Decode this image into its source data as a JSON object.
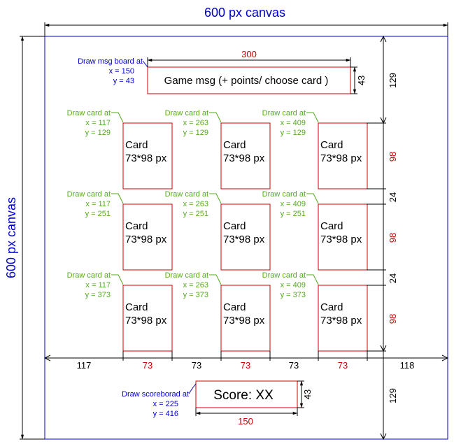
{
  "title_top": "600 px canvas",
  "title_left": "600 px canvas",
  "colors": {
    "canvas": "#0000cc",
    "box": "#cc0000",
    "card_callout": "#55aa22",
    "msg_callout": "#0000cc",
    "dimension": "#000000",
    "dimension_highlight": "#cc0000"
  },
  "msg_board": {
    "label": "Game msg (+ points/ choose card )",
    "width_label": "300",
    "height_label": "43",
    "callout": [
      "Draw msg board at",
      "x = 150",
      "y = 43"
    ]
  },
  "cards": {
    "label_line1": "Card",
    "label_line2": "73*98 px",
    "callout_title": "Draw card at",
    "positions": [
      {
        "x": "x = 117",
        "y": "y = 129"
      },
      {
        "x": "x = 263",
        "y": "y = 129"
      },
      {
        "x": "x = 409",
        "y": "y = 129"
      },
      {
        "x": "x = 117",
        "y": "y = 251"
      },
      {
        "x": "x = 263",
        "y": "y = 251"
      },
      {
        "x": "x = 409",
        "y": "y = 251"
      },
      {
        "x": "x = 117",
        "y": "y = 373"
      },
      {
        "x": "x = 263",
        "y": "y = 373"
      },
      {
        "x": "x = 409",
        "y": "y = 373"
      }
    ]
  },
  "score_board": {
    "label": "Score: XX",
    "width_label": "150",
    "height_label": "43",
    "callout": [
      "Draw scoreborad at",
      "x = 225",
      "y = 416"
    ]
  },
  "horizontal_dims": [
    "117",
    "73",
    "73",
    "73",
    "73",
    "73",
    "118"
  ],
  "right_dims": [
    "129",
    "98",
    "24",
    "98",
    "24",
    "98",
    "129"
  ]
}
